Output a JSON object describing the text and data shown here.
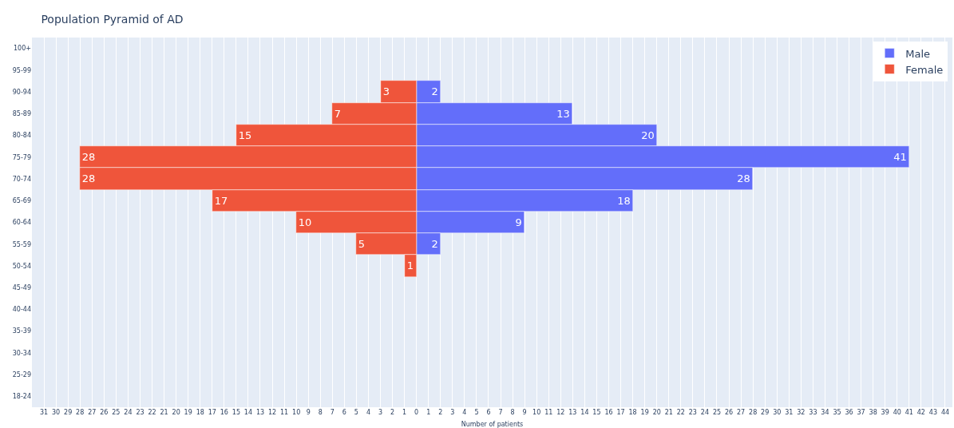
{
  "chart_data": {
    "type": "bar",
    "orientation": "horizontal",
    "title": "Population Pyramid of AD",
    "xlabel": "Number of patients",
    "categories": [
      "100+",
      "95-99",
      "90-94",
      "85-89",
      "80-84",
      "75-79",
      "70-74",
      "65-69",
      "60-64",
      "55-59",
      "50-54",
      "45-49",
      "40-44",
      "35-39",
      "30-34",
      "25-29",
      "18-24"
    ],
    "series": [
      {
        "name": "Male",
        "color": "#636efa",
        "values": [
          null,
          null,
          2,
          13,
          20,
          41,
          28,
          18,
          9,
          2,
          null,
          null,
          null,
          null,
          null,
          null,
          null
        ],
        "value_labels": [
          null,
          null,
          "2",
          "13",
          "20",
          "41",
          "28",
          "18",
          "9",
          "2",
          null,
          null,
          null,
          null,
          null,
          null,
          null
        ]
      },
      {
        "name": "Female",
        "color": "#ef553b",
        "values": [
          null,
          null,
          3,
          7,
          15,
          28,
          28,
          17,
          10,
          5,
          1,
          null,
          null,
          null,
          null,
          null,
          null
        ],
        "base": [
          null,
          null,
          -3,
          -7,
          -15,
          -28,
          -28,
          -17,
          -10,
          -5,
          -1,
          null,
          null,
          null,
          null,
          null,
          null
        ],
        "value_labels": [
          null,
          null,
          "3",
          "7",
          "15",
          "28",
          "28",
          "17",
          "10",
          "5",
          "1",
          null,
          null,
          null,
          null,
          null,
          null
        ]
      }
    ],
    "xlim": [
      -32,
      44.6
    ],
    "xticks": [
      {
        "value": -31,
        "label": "31"
      },
      {
        "value": -30,
        "label": "30"
      },
      {
        "value": -29,
        "label": "29"
      },
      {
        "value": -28,
        "label": "28"
      },
      {
        "value": -27,
        "label": "27"
      },
      {
        "value": -26,
        "label": "26"
      },
      {
        "value": -25,
        "label": "25"
      },
      {
        "value": -24,
        "label": "24"
      },
      {
        "value": -23,
        "label": "23"
      },
      {
        "value": -22,
        "label": "22"
      },
      {
        "value": -21,
        "label": "21"
      },
      {
        "value": -20,
        "label": "20"
      },
      {
        "value": -19,
        "label": "19"
      },
      {
        "value": -18,
        "label": "18"
      },
      {
        "value": -17,
        "label": "17"
      },
      {
        "value": -16,
        "label": "16"
      },
      {
        "value": -15,
        "label": "15"
      },
      {
        "value": -14,
        "label": "14"
      },
      {
        "value": -13,
        "label": "13"
      },
      {
        "value": -12,
        "label": "12"
      },
      {
        "value": -11,
        "label": "11"
      },
      {
        "value": -10,
        "label": "10"
      },
      {
        "value": -9,
        "label": "9"
      },
      {
        "value": -8,
        "label": "8"
      },
      {
        "value": -7,
        "label": "7"
      },
      {
        "value": -6,
        "label": "6"
      },
      {
        "value": -5,
        "label": "5"
      },
      {
        "value": -4,
        "label": "4"
      },
      {
        "value": -3,
        "label": "3"
      },
      {
        "value": -2,
        "label": "2"
      },
      {
        "value": -1,
        "label": "1"
      },
      0,
      1,
      2,
      3,
      4,
      5,
      6,
      7,
      8,
      9,
      10,
      11,
      12,
      13,
      14,
      15,
      16,
      17,
      18,
      19,
      20,
      21,
      22,
      23,
      24,
      25,
      26,
      27,
      28,
      29,
      30,
      31,
      32,
      33,
      34,
      35,
      36,
      37,
      38,
      39,
      40,
      41,
      42,
      43,
      44
    ],
    "grid": "x",
    "legend": "top right"
  }
}
